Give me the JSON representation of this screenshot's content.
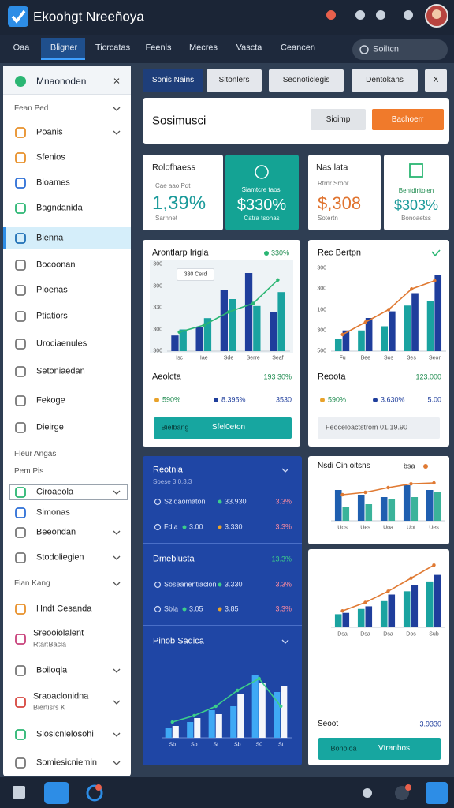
{
  "app": {
    "title": "Ekoohgt Nreeñoya"
  },
  "nav": {
    "tabs": [
      "Oaa",
      "Bligner",
      "Ticrcatas",
      "Feenls",
      "Mecres",
      "Vascta",
      "Ceancen"
    ],
    "search": "Soiltcn"
  },
  "sidebar": {
    "header": "Mnaonoden",
    "close": "×",
    "items": [
      {
        "label": "Fean Ped"
      },
      {
        "label": "Poanis"
      },
      {
        "label": "Sfenios"
      },
      {
        "label": "Bioames"
      },
      {
        "label": "Bagndanida"
      },
      {
        "label": "Bienna"
      },
      {
        "label": "Bocoonan"
      },
      {
        "label": "Pioenas"
      },
      {
        "label": "Ptiatiors"
      },
      {
        "label": "Urociaenules"
      },
      {
        "label": "Setoniaedan"
      },
      {
        "label": "Fekoge"
      },
      {
        "label": "Dieirge"
      },
      {
        "label": "Fleur Angas"
      },
      {
        "label": "Pem Pis"
      },
      {
        "label": "Ciroaeola"
      },
      {
        "label": "Simonas"
      },
      {
        "label": "Beeondan"
      },
      {
        "label": "Stodoliegien"
      },
      {
        "label": "Fian Kang"
      },
      {
        "label": "Hndt Cesanda"
      },
      {
        "label": "Sreooiolalent",
        "sub": "Rtar:Bacla"
      },
      {
        "label": "Boiloqla"
      },
      {
        "label": "Sraoaclonidna",
        "sub": "Biertisrs K"
      },
      {
        "label": "Siosicnlelosohi"
      },
      {
        "label": "Somiesicniemin"
      }
    ]
  },
  "toolbar": {
    "buttons": [
      "Sonis Nains",
      "Sitonlers",
      "Seonoticlegis",
      "Dentokans",
      "X"
    ]
  },
  "header": {
    "title": "Sosimusci",
    "buttons": [
      "Sioimp",
      "Bachoerr"
    ]
  },
  "kpis": [
    {
      "title": "Rolofhaess",
      "sub": "Cae aao Pdt",
      "value": "1,39%",
      "note": "Sarhnet"
    },
    {
      "title": "Siamtcre taosi",
      "value": "$330%",
      "note": "Catra tsonas"
    },
    {
      "title": "Nas lata",
      "sub": "Rtrnr Sroor",
      "value": "$,308",
      "note": "Sotertn"
    },
    {
      "title": "Bentdiritolen",
      "value": "$303%",
      "note": "Bonoaetss"
    }
  ],
  "cards": {
    "left": {
      "title": "Arontlarp Irigla",
      "badge": "330%",
      "tooltip": "330 Cerd",
      "footer_title": "Aeolcta",
      "footer_value": "193 30%",
      "stats": [
        "590%",
        "8.395%",
        "3530"
      ],
      "button": [
        "Bielbang",
        "Sfel0eton"
      ]
    },
    "right": {
      "title": "Rec Bertpn",
      "footer_title": "Reoota",
      "footer_value": "123.000",
      "stats": [
        "590%",
        "3.630%",
        "5.00"
      ],
      "note": "Feoceloactstrom 01.19.90"
    }
  },
  "panel": {
    "sections": [
      {
        "title": "Reotnia",
        "sub": "Soese 3.0.3.3",
        "rows": [
          [
            "Szidaomaton",
            "33.930",
            "3.3%"
          ],
          [
            "Fdla",
            "3.00",
            "3.330",
            "3.3%"
          ]
        ]
      },
      {
        "title": "Dmeblusta",
        "value": "13.3%",
        "rows": [
          [
            "Soseanentiaclon",
            "3.330",
            "3.3%"
          ],
          [
            "Sbla",
            "3.05",
            "3.85",
            "3.3%"
          ]
        ]
      },
      {
        "title": "Pinob Sadica"
      }
    ]
  },
  "side_cards": {
    "top": {
      "title": "Nsdi Cin oitsns",
      "badge": "bsa"
    },
    "bottom": {
      "footer_title": "Seoot",
      "footer_value": "3.9330",
      "button": [
        "Bonoioa",
        "Vtranbos"
      ]
    }
  },
  "charts": {
    "left": {
      "ylim": [
        0,
        100
      ],
      "y_labels": [
        "300",
        "300",
        "330",
        "300",
        "300"
      ],
      "x_labels": [
        "Isc",
        "Iae",
        "Sde",
        "Serre",
        "Seaf"
      ],
      "series": [
        {
          "color": "#1f3e9c",
          "values": [
            18,
            28,
            70,
            90,
            45
          ]
        },
        {
          "color": "#1aa3a0",
          "values": [
            25,
            38,
            60,
            52,
            68
          ]
        }
      ],
      "line": {
        "color": "#2bb673",
        "values": [
          22,
          30,
          45,
          55,
          82
        ]
      }
    },
    "right": {
      "ylim": [
        0,
        100
      ],
      "y_labels": [
        "300",
        "300",
        "100",
        "300",
        "500"
      ],
      "x_labels": [
        "Fu",
        "Bee",
        "Sos",
        "3es",
        "Seor"
      ],
      "series": [
        {
          "color": "#1aa3a0",
          "values": [
            15,
            25,
            30,
            55,
            60
          ]
        },
        {
          "color": "#1f3e9c",
          "values": [
            25,
            40,
            48,
            70,
            92
          ]
        }
      ],
      "line": {
        "color": "#e07a33",
        "values": [
          20,
          35,
          50,
          75,
          85
        ]
      }
    },
    "panel": {
      "ylim": [
        0,
        100
      ],
      "x_labels": [
        "Sb",
        "Sb",
        "St",
        "Sb",
        "S0",
        "St"
      ],
      "series": [
        {
          "color": "#3fa9f5",
          "values": [
            12,
            20,
            35,
            40,
            80,
            58
          ]
        },
        {
          "color": "#f4f6fb",
          "values": [
            15,
            25,
            30,
            55,
            70,
            65
          ]
        }
      ],
      "line": {
        "color": "#3ccf8a",
        "values": [
          20,
          28,
          40,
          60,
          75,
          40
        ]
      }
    },
    "side_top": {
      "ylim": [
        0,
        100
      ],
      "x_labels": [
        "Uos",
        "Ues",
        "Uoa",
        "Uot",
        "Ues"
      ],
      "series": [
        {
          "color": "#1f5fb0",
          "values": [
            65,
            55,
            50,
            75,
            65
          ]
        },
        {
          "color": "#3bb39a",
          "values": [
            30,
            35,
            45,
            50,
            60
          ]
        }
      ],
      "line": {
        "color": "#e07a33",
        "values": [
          55,
          60,
          70,
          78,
          80
        ]
      }
    },
    "side_bottom": {
      "ylim": [
        0,
        100
      ],
      "x_labels": [
        "Dsa",
        "Dsa",
        "Dsa",
        "Dos",
        "Sub"
      ],
      "series": [
        {
          "color": "#1aa3a0",
          "values": [
            20,
            28,
            40,
            55,
            70
          ]
        },
        {
          "color": "#1f3e9c",
          "values": [
            22,
            32,
            50,
            65,
            80
          ]
        }
      ],
      "line": {
        "color": "#e07a33",
        "values": [
          25,
          38,
          55,
          75,
          95
        ]
      }
    }
  }
}
